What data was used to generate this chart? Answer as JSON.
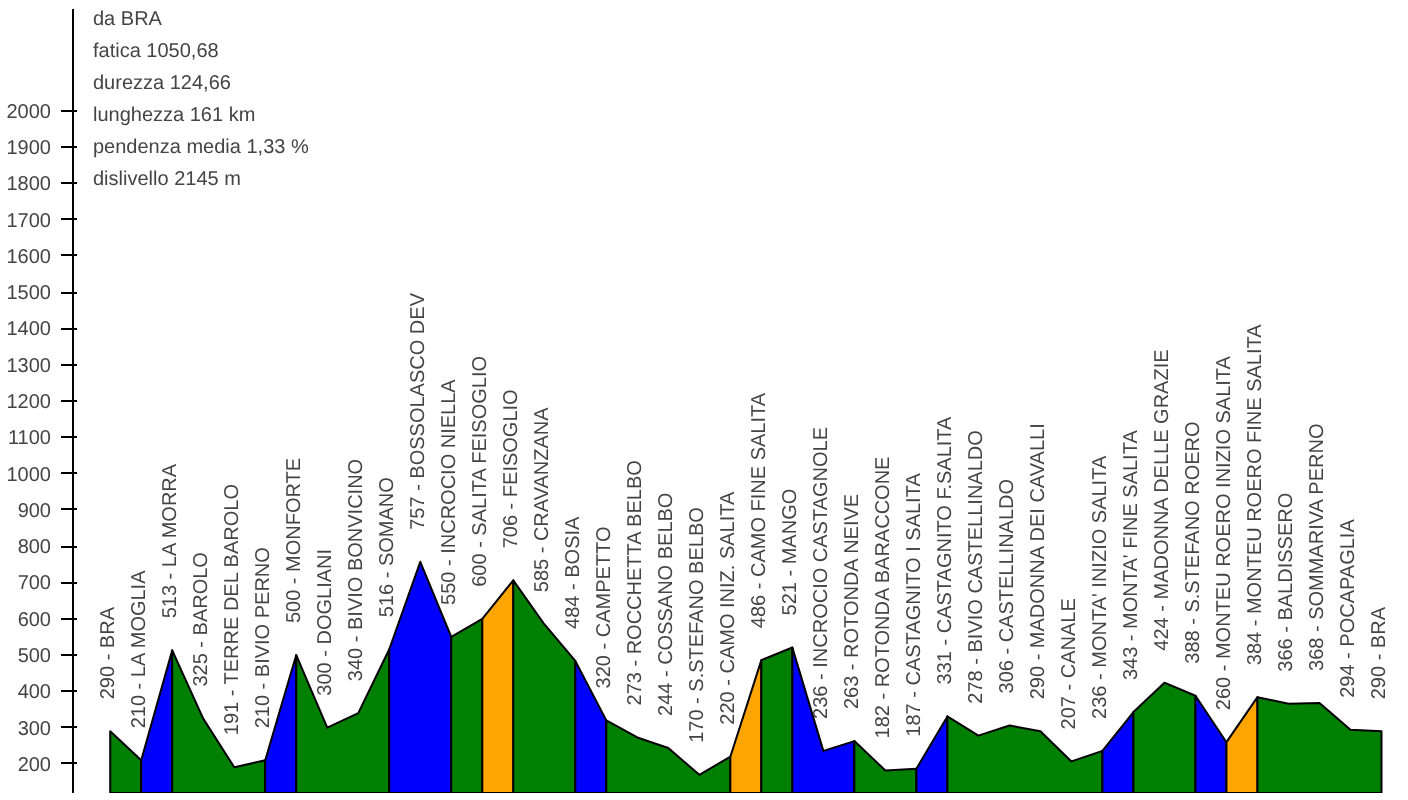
{
  "chart_data": {
    "type": "area",
    "annotations": [
      "da BRA",
      "fatica 1050,68",
      "durezza 124,66",
      "lunghezza 161 km",
      "pendenza media 1,33 %",
      "dislivello 2145 m"
    ],
    "categories": [
      "290 - BRA",
      "210 - LA MOGLIA",
      "513 - LA MORRA",
      "325 - BAROLO",
      "191 - TERRE DEL BAROLO",
      "210 - BIVIO PERNO",
      "500 - MONFORTE",
      "300 - DOGLIANI",
      "340 - BIVIO BONVICINO",
      "516 - SOMANO",
      "757 - BOSSOLASCO DEV",
      "550 - INCROCIO NIELLA",
      "600 - SALITA FEISOGLIO",
      "706 - FEISOGLIO",
      "585 - CRAVANZANA",
      "484 - BOSIA",
      "320 - CAMPETTO",
      "273 - ROCCHETTA BELBO",
      "244 - COSSANO BELBO",
      "170 - S.STEFANO BELBO",
      "220 - CAMO INIZ. SALITA",
      "486 - CAMO  FINE SALITA",
      "521 - MANGO",
      "236 - INCROCIO CASTAGNOLE",
      "263 - ROTONDA NEIVE",
      "182 - ROTONDA BARACCONE",
      "187 - CASTAGNITO I SALITA",
      "331 - CASTAGNITO F.SALITA",
      "278 - BIVIO CASTELLINALDO",
      "306 - CASTELLINALDO",
      "290 - MADONNA DEI CAVALLI",
      "207 - CANALE",
      "236 - MONTA' INIZIO SALITA",
      "343 - MONTA' FINE SALITA",
      "424 - MADONNA DELLE GRAZIE",
      "388 - S.STEFANO ROERO",
      "260 - MONTEU ROERO INIZIO SALITA",
      "384 - MONTEU ROERO FINE SALITA",
      "366 - BALDISSERO",
      "368 - SOMMARIVA PERNO",
      "294 - POCAPAGLIA",
      "290 - BRA"
    ],
    "series": [
      {
        "color": "#008000",
        "values": [
          290,
          210,
          null,
          null,
          null,
          null,
          null,
          null,
          null,
          null,
          null,
          null,
          null,
          null,
          null,
          null,
          null,
          null,
          null,
          null,
          null,
          null,
          null,
          null,
          null,
          null,
          null,
          null,
          null,
          null,
          null,
          null,
          null,
          null,
          null,
          null,
          null,
          null,
          null,
          null,
          null,
          null
        ]
      },
      {
        "color": "#0000ff",
        "values": [
          null,
          210,
          513,
          null,
          null,
          null,
          null,
          null,
          null,
          null,
          null,
          null,
          null,
          null,
          null,
          null,
          null,
          null,
          null,
          null,
          null,
          null,
          null,
          null,
          null,
          null,
          null,
          null,
          null,
          null,
          null,
          null,
          null,
          null,
          null,
          null,
          null,
          null,
          null,
          null,
          null,
          null
        ]
      },
      {
        "color": "#008000",
        "values": [
          null,
          null,
          513,
          325,
          191,
          210,
          null,
          null,
          null,
          null,
          null,
          null,
          null,
          null,
          null,
          null,
          null,
          null,
          null,
          null,
          null,
          null,
          null,
          null,
          null,
          null,
          null,
          null,
          null,
          null,
          null,
          null,
          null,
          null,
          null,
          null,
          null,
          null,
          null,
          null,
          null,
          null
        ]
      },
      {
        "color": "#0000ff",
        "values": [
          null,
          null,
          null,
          null,
          null,
          210,
          500,
          null,
          null,
          null,
          null,
          null,
          null,
          null,
          null,
          null,
          null,
          null,
          null,
          null,
          null,
          null,
          null,
          null,
          null,
          null,
          null,
          null,
          null,
          null,
          null,
          null,
          null,
          null,
          null,
          null,
          null,
          null,
          null,
          null,
          null,
          null
        ]
      },
      {
        "color": "#008000",
        "values": [
          null,
          null,
          null,
          null,
          null,
          null,
          500,
          300,
          340,
          516,
          null,
          null,
          null,
          null,
          null,
          null,
          null,
          null,
          null,
          null,
          null,
          null,
          null,
          null,
          null,
          null,
          null,
          null,
          null,
          null,
          null,
          null,
          null,
          null,
          null,
          null,
          null,
          null,
          null,
          null,
          null,
          null
        ]
      },
      {
        "color": "#0000ff",
        "values": [
          null,
          null,
          null,
          null,
          null,
          null,
          null,
          null,
          null,
          516,
          757,
          550,
          null,
          null,
          null,
          null,
          null,
          null,
          null,
          null,
          null,
          null,
          null,
          null,
          null,
          null,
          null,
          null,
          null,
          null,
          null,
          null,
          null,
          null,
          null,
          null,
          null,
          null,
          null,
          null,
          null,
          null
        ]
      },
      {
        "color": "#008000",
        "values": [
          null,
          null,
          null,
          null,
          null,
          null,
          null,
          null,
          null,
          null,
          null,
          550,
          600,
          null,
          null,
          null,
          null,
          null,
          null,
          null,
          null,
          null,
          null,
          null,
          null,
          null,
          null,
          null,
          null,
          null,
          null,
          null,
          null,
          null,
          null,
          null,
          null,
          null,
          null,
          null,
          null,
          null
        ]
      },
      {
        "color": "#ffa500",
        "values": [
          null,
          null,
          null,
          null,
          null,
          null,
          null,
          null,
          null,
          null,
          null,
          null,
          600,
          706,
          null,
          null,
          null,
          null,
          null,
          null,
          null,
          null,
          null,
          null,
          null,
          null,
          null,
          null,
          null,
          null,
          null,
          null,
          null,
          null,
          null,
          null,
          null,
          null,
          null,
          null,
          null,
          null
        ]
      },
      {
        "color": "#008000",
        "values": [
          null,
          null,
          null,
          null,
          null,
          null,
          null,
          null,
          null,
          null,
          null,
          null,
          null,
          706,
          585,
          484,
          null,
          null,
          null,
          null,
          null,
          null,
          null,
          null,
          null,
          null,
          null,
          null,
          null,
          null,
          null,
          null,
          null,
          null,
          null,
          null,
          null,
          null,
          null,
          null,
          null,
          null
        ]
      },
      {
        "color": "#0000ff",
        "values": [
          null,
          null,
          null,
          null,
          null,
          null,
          null,
          null,
          null,
          null,
          null,
          null,
          null,
          null,
          null,
          484,
          320,
          null,
          null,
          null,
          null,
          null,
          null,
          null,
          null,
          null,
          null,
          null,
          null,
          null,
          null,
          null,
          null,
          null,
          null,
          null,
          null,
          null,
          null,
          null,
          null,
          null
        ]
      },
      {
        "color": "#008000",
        "values": [
          null,
          null,
          null,
          null,
          null,
          null,
          null,
          null,
          null,
          null,
          null,
          null,
          null,
          null,
          null,
          null,
          320,
          273,
          244,
          170,
          220,
          null,
          null,
          null,
          null,
          null,
          null,
          null,
          null,
          null,
          null,
          null,
          null,
          null,
          null,
          null,
          null,
          null,
          null,
          null,
          null,
          null
        ]
      },
      {
        "color": "#ffa500",
        "values": [
          null,
          null,
          null,
          null,
          null,
          null,
          null,
          null,
          null,
          null,
          null,
          null,
          null,
          null,
          null,
          null,
          null,
          null,
          null,
          null,
          220,
          486,
          null,
          null,
          null,
          null,
          null,
          null,
          null,
          null,
          null,
          null,
          null,
          null,
          null,
          null,
          null,
          null,
          null,
          null,
          null,
          null
        ]
      },
      {
        "color": "#008000",
        "values": [
          null,
          null,
          null,
          null,
          null,
          null,
          null,
          null,
          null,
          null,
          null,
          null,
          null,
          null,
          null,
          null,
          null,
          null,
          null,
          null,
          null,
          486,
          521,
          null,
          null,
          null,
          null,
          null,
          null,
          null,
          null,
          null,
          null,
          null,
          null,
          null,
          null,
          null,
          null,
          null,
          null,
          null
        ]
      },
      {
        "color": "#0000ff",
        "values": [
          null,
          null,
          null,
          null,
          null,
          null,
          null,
          null,
          null,
          null,
          null,
          null,
          null,
          null,
          null,
          null,
          null,
          null,
          null,
          null,
          null,
          null,
          521,
          236,
          263,
          null,
          null,
          null,
          null,
          null,
          null,
          null,
          null,
          null,
          null,
          null,
          null,
          null,
          null,
          null,
          null,
          null
        ]
      },
      {
        "color": "#008000",
        "values": [
          null,
          null,
          null,
          null,
          null,
          null,
          null,
          null,
          null,
          null,
          null,
          null,
          null,
          null,
          null,
          null,
          null,
          null,
          null,
          null,
          null,
          null,
          null,
          null,
          263,
          182,
          187,
          null,
          null,
          null,
          null,
          null,
          null,
          null,
          null,
          null,
          null,
          null,
          null,
          null,
          null,
          null
        ]
      },
      {
        "color": "#0000ff",
        "values": [
          null,
          null,
          null,
          null,
          null,
          null,
          null,
          null,
          null,
          null,
          null,
          null,
          null,
          null,
          null,
          null,
          null,
          null,
          null,
          null,
          null,
          null,
          null,
          null,
          null,
          null,
          187,
          331,
          null,
          null,
          null,
          null,
          null,
          null,
          null,
          null,
          null,
          null,
          null,
          null,
          null,
          null
        ]
      },
      {
        "color": "#008000",
        "values": [
          null,
          null,
          null,
          null,
          null,
          null,
          null,
          null,
          null,
          null,
          null,
          null,
          null,
          null,
          null,
          null,
          null,
          null,
          null,
          null,
          null,
          null,
          null,
          null,
          null,
          null,
          null,
          331,
          278,
          306,
          290,
          207,
          236,
          null,
          null,
          null,
          null,
          null,
          null,
          null,
          null,
          null
        ]
      },
      {
        "color": "#0000ff",
        "values": [
          null,
          null,
          null,
          null,
          null,
          null,
          null,
          null,
          null,
          null,
          null,
          null,
          null,
          null,
          null,
          null,
          null,
          null,
          null,
          null,
          null,
          null,
          null,
          null,
          null,
          null,
          null,
          null,
          null,
          null,
          null,
          null,
          236,
          343,
          null,
          null,
          null,
          null,
          null,
          null,
          null,
          null
        ]
      },
      {
        "color": "#008000",
        "values": [
          null,
          null,
          null,
          null,
          null,
          null,
          null,
          null,
          null,
          null,
          null,
          null,
          null,
          null,
          null,
          null,
          null,
          null,
          null,
          null,
          null,
          null,
          null,
          null,
          null,
          null,
          null,
          null,
          null,
          null,
          null,
          null,
          null,
          343,
          424,
          388,
          null,
          null,
          null,
          null,
          null,
          null
        ]
      },
      {
        "color": "#0000ff",
        "values": [
          null,
          null,
          null,
          null,
          null,
          null,
          null,
          null,
          null,
          null,
          null,
          null,
          null,
          null,
          null,
          null,
          null,
          null,
          null,
          null,
          null,
          null,
          null,
          null,
          null,
          null,
          null,
          null,
          null,
          null,
          null,
          null,
          null,
          null,
          null,
          388,
          260,
          null,
          null,
          null,
          null,
          null
        ]
      },
      {
        "color": "#ffa500",
        "values": [
          null,
          null,
          null,
          null,
          null,
          null,
          null,
          null,
          null,
          null,
          null,
          null,
          null,
          null,
          null,
          null,
          null,
          null,
          null,
          null,
          null,
          null,
          null,
          null,
          null,
          null,
          null,
          null,
          null,
          null,
          null,
          null,
          null,
          null,
          null,
          null,
          260,
          384,
          null,
          null,
          null,
          null
        ]
      },
      {
        "color": "#008000",
        "values": [
          null,
          null,
          null,
          null,
          null,
          null,
          null,
          null,
          null,
          null,
          null,
          null,
          null,
          null,
          null,
          null,
          null,
          null,
          null,
          null,
          null,
          null,
          null,
          null,
          null,
          null,
          null,
          null,
          null,
          null,
          null,
          null,
          null,
          null,
          null,
          null,
          null,
          384,
          366,
          368,
          294,
          290
        ]
      }
    ],
    "ylim": [
      120,
      2280
    ],
    "yticks": [
      200,
      300,
      400,
      500,
      600,
      700,
      800,
      900,
      1000,
      1100,
      1200,
      1300,
      1400,
      1500,
      1600,
      1700,
      1800,
      1900,
      2000
    ],
    "grid": false
  }
}
